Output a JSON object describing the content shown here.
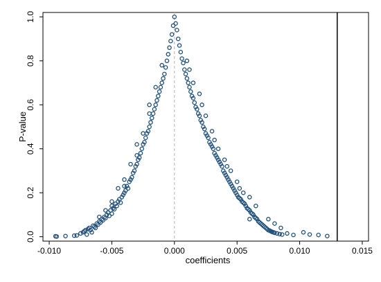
{
  "chart_data": {
    "type": "scatter",
    "title": "",
    "xlabel": "coefficients",
    "ylabel": "P-value",
    "xlim": [
      -0.0105,
      0.0155
    ],
    "ylim": [
      -0.02,
      1.02
    ],
    "x_ticks": [
      -0.01,
      -0.005,
      0.0,
      0.005,
      0.01,
      0.015
    ],
    "x_tick_labels": [
      "-0.010",
      "-0.005",
      "0.000",
      "0.005",
      "0.010",
      "0.015"
    ],
    "y_ticks": [
      0.0,
      0.2,
      0.4,
      0.6,
      0.8,
      1.0
    ],
    "y_tick_labels": [
      "0.0",
      "0.2",
      "0.4",
      "0.6",
      "0.8",
      "1.0"
    ],
    "grid": false,
    "legend": "none",
    "reference_lines": [
      {
        "orientation": "vertical",
        "x": 0.0,
        "style": "dashed",
        "color": "#b3b3b3"
      },
      {
        "orientation": "vertical",
        "x": 0.013,
        "style": "solid",
        "color": "#000000"
      }
    ],
    "marker_color": "#1f4e79",
    "series": [
      {
        "points": [
          [
            -0.0095,
            0.002
          ],
          [
            -0.0094,
            0.001
          ],
          [
            -0.0087,
            0.003
          ],
          [
            -0.008,
            0.005
          ],
          [
            -0.0078,
            0.006
          ],
          [
            -0.0075,
            0.015
          ],
          [
            -0.0073,
            0.02
          ],
          [
            -0.0072,
            0.025
          ],
          [
            -0.0071,
            0.03
          ],
          [
            -0.007,
            0.01
          ],
          [
            -0.0069,
            0.035
          ],
          [
            -0.0068,
            0.04
          ],
          [
            -0.0067,
            0.03
          ],
          [
            -0.0066,
            0.02
          ],
          [
            -0.0065,
            0.05
          ],
          [
            -0.0064,
            0.045
          ],
          [
            -0.0063,
            0.04
          ],
          [
            -0.0062,
            0.06
          ],
          [
            -0.0061,
            0.055
          ],
          [
            -0.006,
            0.07
          ],
          [
            -0.0059,
            0.065
          ],
          [
            -0.0058,
            0.08
          ],
          [
            -0.0057,
            0.075
          ],
          [
            -0.0056,
            0.09
          ],
          [
            -0.0055,
            0.085
          ],
          [
            -0.0054,
            0.1
          ],
          [
            -0.0053,
            0.11
          ],
          [
            -0.0052,
            0.095
          ],
          [
            -0.0051,
            0.12
          ],
          [
            -0.005,
            0.105
          ],
          [
            -0.0049,
            0.13
          ],
          [
            -0.0048,
            0.125
          ],
          [
            -0.0047,
            0.15
          ],
          [
            -0.0046,
            0.14
          ],
          [
            -0.0045,
            0.16
          ],
          [
            -0.0044,
            0.17
          ],
          [
            -0.0043,
            0.155
          ],
          [
            -0.0042,
            0.18
          ],
          [
            -0.0041,
            0.19
          ],
          [
            -0.004,
            0.2
          ],
          [
            -0.0039,
            0.21
          ],
          [
            -0.0038,
            0.23
          ],
          [
            -0.0037,
            0.22
          ],
          [
            -0.0036,
            0.25
          ],
          [
            -0.0035,
            0.26
          ],
          [
            -0.0034,
            0.27
          ],
          [
            -0.0033,
            0.29
          ],
          [
            -0.0032,
            0.3
          ],
          [
            -0.0031,
            0.32
          ],
          [
            -0.003,
            0.33
          ],
          [
            -0.0029,
            0.35
          ],
          [
            -0.0028,
            0.36
          ],
          [
            -0.0027,
            0.38
          ],
          [
            -0.0026,
            0.4
          ],
          [
            -0.0025,
            0.42
          ],
          [
            -0.0024,
            0.43
          ],
          [
            -0.0023,
            0.45
          ],
          [
            -0.0022,
            0.47
          ],
          [
            -0.0021,
            0.48
          ],
          [
            -0.002,
            0.5
          ],
          [
            -0.0019,
            0.52
          ],
          [
            -0.0018,
            0.54
          ],
          [
            -0.0017,
            0.56
          ],
          [
            -0.0016,
            0.58
          ],
          [
            -0.0015,
            0.6
          ],
          [
            -0.0014,
            0.62
          ],
          [
            -0.0013,
            0.64
          ],
          [
            -0.0012,
            0.66
          ],
          [
            -0.0011,
            0.68
          ],
          [
            -0.001,
            0.7
          ],
          [
            -0.0009,
            0.72
          ],
          [
            -0.0008,
            0.74
          ],
          [
            -0.0007,
            0.77
          ],
          [
            -0.0006,
            0.8
          ],
          [
            -0.0005,
            0.83
          ],
          [
            -0.0004,
            0.86
          ],
          [
            -0.0003,
            0.89
          ],
          [
            -0.0002,
            0.92
          ],
          [
            -0.0001,
            0.96
          ],
          [
            0.0,
            1.0
          ],
          [
            0.0001,
            0.97
          ],
          [
            0.0002,
            0.94
          ],
          [
            0.0003,
            0.9
          ],
          [
            0.0004,
            0.87
          ],
          [
            0.0005,
            0.84
          ],
          [
            0.0006,
            0.81
          ],
          [
            0.0007,
            0.79
          ],
          [
            0.0008,
            0.76
          ],
          [
            0.0009,
            0.74
          ],
          [
            0.001,
            0.72
          ],
          [
            0.0011,
            0.7
          ],
          [
            0.0012,
            0.68
          ],
          [
            0.0013,
            0.66
          ],
          [
            0.0014,
            0.64
          ],
          [
            0.0015,
            0.63
          ],
          [
            0.0016,
            0.61
          ],
          [
            0.0017,
            0.59
          ],
          [
            0.0018,
            0.58
          ],
          [
            0.0019,
            0.56
          ],
          [
            0.002,
            0.55
          ],
          [
            0.0021,
            0.53
          ],
          [
            0.0022,
            0.52
          ],
          [
            0.0023,
            0.5
          ],
          [
            0.0024,
            0.49
          ],
          [
            0.0025,
            0.47
          ],
          [
            0.0026,
            0.46
          ],
          [
            0.0027,
            0.45
          ],
          [
            0.0028,
            0.43
          ],
          [
            0.0029,
            0.42
          ],
          [
            0.003,
            0.41
          ],
          [
            0.0031,
            0.4
          ],
          [
            0.0032,
            0.38
          ],
          [
            0.0033,
            0.37
          ],
          [
            0.0034,
            0.36
          ],
          [
            0.0035,
            0.35
          ],
          [
            0.0036,
            0.34
          ],
          [
            0.0037,
            0.33
          ],
          [
            0.0038,
            0.32
          ],
          [
            0.0039,
            0.3
          ],
          [
            0.004,
            0.29
          ],
          [
            0.0041,
            0.28
          ],
          [
            0.0042,
            0.27
          ],
          [
            0.0043,
            0.26
          ],
          [
            0.0044,
            0.25
          ],
          [
            0.0045,
            0.24
          ],
          [
            0.0046,
            0.23
          ],
          [
            0.0047,
            0.22
          ],
          [
            0.0048,
            0.21
          ],
          [
            0.0049,
            0.2
          ],
          [
            0.005,
            0.19
          ],
          [
            0.0051,
            0.18
          ],
          [
            0.0052,
            0.175
          ],
          [
            0.0053,
            0.17
          ],
          [
            0.0054,
            0.16
          ],
          [
            0.0055,
            0.155
          ],
          [
            0.0056,
            0.15
          ],
          [
            0.0057,
            0.14
          ],
          [
            0.0058,
            0.13
          ],
          [
            0.0059,
            0.125
          ],
          [
            0.006,
            0.12
          ],
          [
            0.0061,
            0.11
          ],
          [
            0.0062,
            0.105
          ],
          [
            0.0063,
            0.1
          ],
          [
            0.0064,
            0.09
          ],
          [
            0.0065,
            0.085
          ],
          [
            0.0066,
            0.08
          ],
          [
            0.0067,
            0.07
          ],
          [
            0.0068,
            0.065
          ],
          [
            0.0069,
            0.06
          ],
          [
            0.007,
            0.055
          ],
          [
            0.0071,
            0.05
          ],
          [
            0.0072,
            0.045
          ],
          [
            0.0073,
            0.04
          ],
          [
            0.0074,
            0.035
          ],
          [
            0.0075,
            0.03
          ],
          [
            0.0076,
            0.028
          ],
          [
            0.0077,
            0.025
          ],
          [
            0.0078,
            0.022
          ],
          [
            0.0079,
            0.02
          ],
          [
            0.008,
            0.018
          ],
          [
            0.0082,
            0.015
          ],
          [
            0.0084,
            0.012
          ],
          [
            0.0086,
            0.01
          ],
          [
            0.009,
            0.015
          ],
          [
            0.0095,
            0.008
          ],
          [
            0.0103,
            0.02
          ],
          [
            0.0108,
            0.01
          ],
          [
            0.0115,
            0.008
          ],
          [
            0.0122,
            0.003
          ],
          [
            -0.005,
            0.16
          ],
          [
            -0.004,
            0.26
          ],
          [
            -0.003,
            0.42
          ],
          [
            -0.002,
            0.56
          ],
          [
            -0.001,
            0.78
          ],
          [
            0.001,
            0.8
          ],
          [
            0.002,
            0.65
          ],
          [
            0.003,
            0.48
          ],
          [
            0.004,
            0.35
          ],
          [
            0.005,
            0.25
          ],
          [
            0.006,
            0.18
          ],
          [
            -0.0055,
            0.12
          ],
          [
            -0.0045,
            0.22
          ],
          [
            -0.0035,
            0.33
          ],
          [
            -0.0025,
            0.47
          ],
          [
            -0.0015,
            0.68
          ],
          [
            0.0015,
            0.7
          ],
          [
            0.0025,
            0.55
          ],
          [
            0.0035,
            0.4
          ],
          [
            0.0045,
            0.3
          ],
          [
            0.0055,
            0.2
          ],
          [
            0.0065,
            0.14
          ],
          [
            0.0075,
            0.08
          ],
          [
            0.008,
            0.06
          ],
          [
            0.0085,
            0.04
          ],
          [
            0.006,
            0.08
          ],
          [
            -0.006,
            0.09
          ],
          [
            -0.005,
            0.14
          ],
          [
            -0.004,
            0.23
          ],
          [
            -0.003,
            0.37
          ],
          [
            -0.002,
            0.6
          ],
          [
            0.0012,
            0.76
          ],
          [
            0.0022,
            0.6
          ],
          [
            0.0032,
            0.44
          ],
          [
            0.0042,
            0.32
          ],
          [
            0.0052,
            0.22
          ]
        ]
      }
    ]
  }
}
